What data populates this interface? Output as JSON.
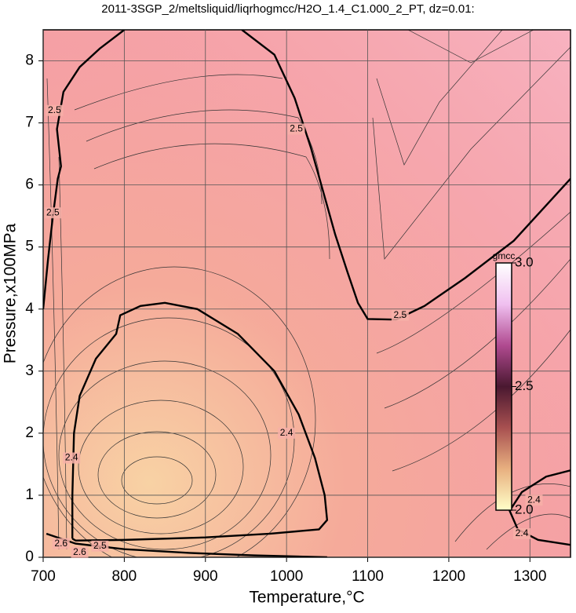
{
  "chart_data": {
    "type": "contour",
    "title": "2011-3SGP_2/meltsliquid/liqrhogmcc/H2O_1.4_C1.000_2_PT, dz=0.01:",
    "xlabel": "Temperature,°C",
    "ylabel": "Pressure,x100MPa",
    "xlim": [
      700,
      1350
    ],
    "ylim": [
      0,
      8.5
    ],
    "xticks": [
      700,
      800,
      900,
      1000,
      1100,
      1200,
      1300
    ],
    "yticks": [
      0,
      1,
      2,
      3,
      4,
      5,
      6,
      7,
      8
    ],
    "grid": true,
    "contours": [
      {
        "x": [
          700,
          706,
          712,
          718,
          722,
          717,
          725,
          745,
          770,
          800
        ],
        "y": [
          4.0,
          4.8,
          5.5,
          6.1,
          6.3,
          6.9,
          7.5,
          7.9,
          8.2,
          8.5
        ]
      },
      {
        "x": [
          945,
          985,
          1010,
          1030,
          1045,
          1060,
          1075,
          1088,
          1100,
          1135,
          1170,
          1220,
          1280,
          1350
        ],
        "y": [
          8.5,
          8.1,
          7.4,
          6.6,
          5.9,
          5.2,
          4.6,
          4.1,
          3.84,
          3.83,
          4.05,
          4.5,
          5.1,
          6.1
        ]
      },
      {
        "x": [
          704,
          740,
          800,
          880,
          960,
          1050
        ],
        "y": [
          0.38,
          0.22,
          0.13,
          0.07,
          0.03,
          0.0
        ]
      },
      {
        "x": [
          736,
          736,
          738,
          745,
          765,
          790,
          795,
          820,
          850,
          890,
          940,
          985,
          1015,
          1035,
          1047,
          1050,
          1040,
          980,
          900,
          800,
          740,
          736
        ],
        "y": [
          0.3,
          1.0,
          2.0,
          2.6,
          3.2,
          3.6,
          3.9,
          4.05,
          4.1,
          4.0,
          3.6,
          3.0,
          2.3,
          1.6,
          1.0,
          0.6,
          0.45,
          0.38,
          0.32,
          0.28,
          0.27,
          0.3
        ]
      },
      {
        "x": [
          1350,
          1310,
          1285,
          1275,
          1290,
          1320,
          1350
        ],
        "y": [
          0.2,
          0.28,
          0.45,
          0.75,
          1.05,
          1.3,
          1.4
        ]
      }
    ],
    "annotations": [
      {
        "text": "2.5",
        "x": 714,
        "y": 7.2
      },
      {
        "text": "2.5",
        "x": 712,
        "y": 5.55
      },
      {
        "text": "2.5",
        "x": 1012,
        "y": 6.9
      },
      {
        "text": "2.5",
        "x": 1140,
        "y": 3.9
      },
      {
        "text": "2.5",
        "x": 770,
        "y": 0.18
      },
      {
        "text": "2.4",
        "x": 1000,
        "y": 2.0
      },
      {
        "text": "2.4",
        "x": 735,
        "y": 1.6
      },
      {
        "text": "2.4",
        "x": 1305,
        "y": 0.92
      },
      {
        "text": "2.4",
        "x": 1290,
        "y": 0.38
      },
      {
        "text": "2.6",
        "x": 722,
        "y": 0.22
      },
      {
        "text": "2.6",
        "x": 745,
        "y": 0.08
      }
    ],
    "colorbar": {
      "label": "gmcc",
      "lim": [
        2.0,
        3.0
      ],
      "ticks": [
        {
          "value": 2.0,
          "label": "2.0"
        },
        {
          "value": 2.5,
          "label": "2.5"
        },
        {
          "value": 3.0,
          "label": "3.0"
        }
      ],
      "colors": [
        "#ffffc8",
        "#e8b080",
        "#a85050",
        "#4a1830",
        "#b04a90",
        "#f0c0f0",
        "#ffffff"
      ]
    }
  }
}
